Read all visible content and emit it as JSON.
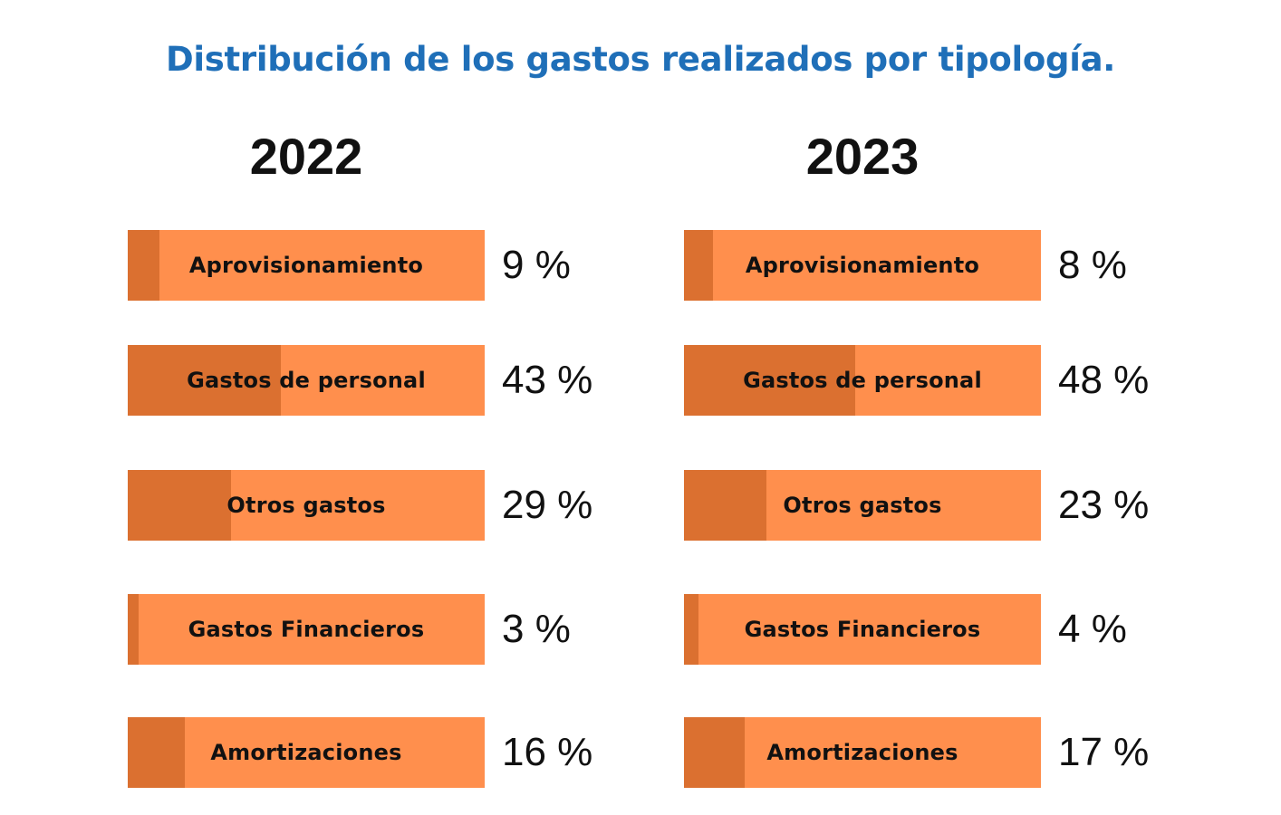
{
  "title": "Distribución de los gastos realizados por tipología.",
  "colors": {
    "title": "#1f6fb8",
    "bar_background": "#ff8f4d",
    "bar_fill": "#db7030",
    "text": "#111111"
  },
  "chart_data": [
    {
      "type": "bar",
      "title": "2022",
      "categories": [
        "Aprovisionamiento",
        "Gastos de personal",
        "Otros gastos",
        "Gastos Financieros",
        "Amortizaciones"
      ],
      "values": [
        9,
        43,
        29,
        3,
        16
      ],
      "value_labels": [
        "9 %",
        "43 %",
        "29 %",
        "3 %",
        "16 %"
      ],
      "unit": "%",
      "ylim": [
        0,
        100
      ]
    },
    {
      "type": "bar",
      "title": "2023",
      "categories": [
        "Aprovisionamiento",
        "Gastos de personal",
        "Otros gastos",
        "Gastos Financieros",
        "Amortizaciones"
      ],
      "values": [
        8,
        48,
        23,
        4,
        17
      ],
      "value_labels": [
        "8 %",
        "48 %",
        "23 %",
        "4 %",
        "17 %"
      ],
      "unit": "%",
      "ylim": [
        0,
        100
      ]
    }
  ]
}
